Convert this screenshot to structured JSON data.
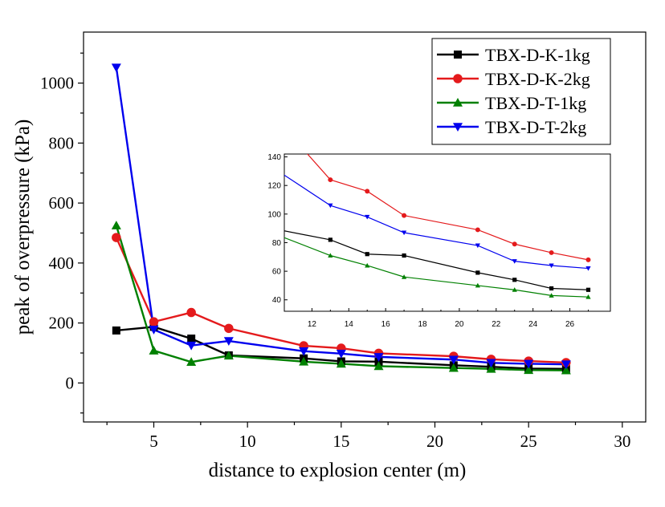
{
  "chart_data": {
    "type": "line",
    "title": "",
    "xlabel": "distance to explosion center (m)",
    "ylabel": "peak of overpressure (kPa)",
    "xlim": [
      1.25,
      31.25
    ],
    "ylim": [
      -130,
      1170
    ],
    "xticks": [
      5,
      10,
      15,
      20,
      25,
      30
    ],
    "yticks": [
      0,
      200,
      400,
      600,
      800,
      1000
    ],
    "grid": false,
    "legend": "top-right",
    "x": [
      3,
      5,
      7,
      9,
      13,
      15,
      17,
      21,
      23,
      25,
      27
    ],
    "series": [
      {
        "name": "TBX-D-K-1kg",
        "color": "#000000",
        "marker": "square",
        "values": [
          175,
          187,
          148,
          92,
          82,
          72,
          71,
          59,
          54,
          48,
          47
        ]
      },
      {
        "name": "TBX-D-K-2kg",
        "color": "#e41a1c",
        "marker": "circle",
        "values": [
          485,
          204,
          235,
          182,
          124,
          116,
          99,
          89,
          79,
          73,
          68
        ]
      },
      {
        "name": "TBX-D-T-1kg",
        "color": "#008000",
        "marker": "triangle-up",
        "values": [
          525,
          108,
          70,
          91,
          71,
          64,
          56,
          50,
          47,
          43,
          42
        ]
      },
      {
        "name": "TBX-D-T-2kg",
        "color": "#0000ee",
        "marker": "triangle-down",
        "values": [
          1052,
          178,
          125,
          140,
          106,
          98,
          87,
          78,
          67,
          64,
          62
        ]
      }
    ],
    "inset": {
      "xlim": [
        10.5,
        28.2
      ],
      "ylim": [
        32,
        142
      ],
      "xticks": [
        12,
        14,
        16,
        18,
        20,
        22,
        24,
        26
      ],
      "yticks": [
        40,
        60,
        80,
        100,
        120,
        140
      ]
    }
  }
}
